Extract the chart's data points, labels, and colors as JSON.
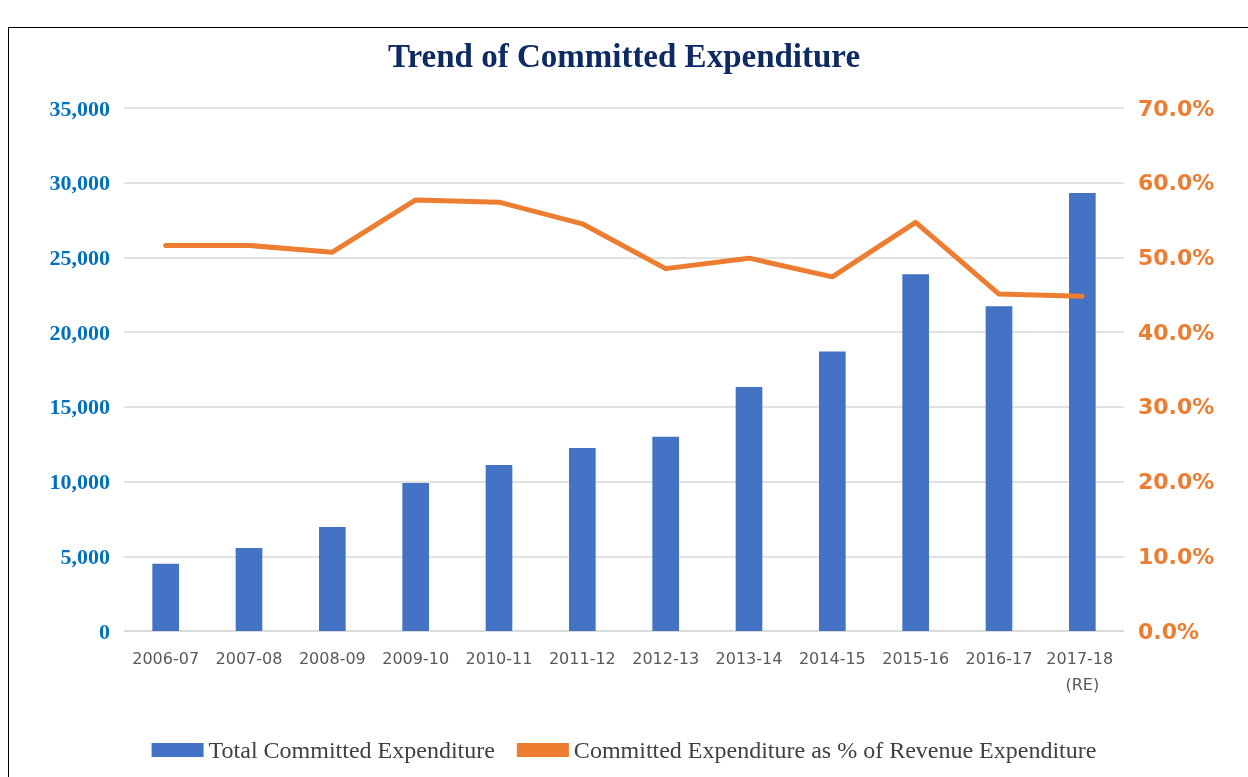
{
  "chart_data": {
    "type": "bar",
    "title": "Trend of Committed Expenditure",
    "categories": [
      "2006-07",
      "2007-08",
      "2008-09",
      "2009-10",
      "2010-11",
      "2011-12",
      "2012-13",
      "2013-14",
      "2014-15",
      "2015-16",
      "2016-17",
      "2017-18 (RE)"
    ],
    "series": [
      {
        "name": "Total Committed Expenditure",
        "color": "#4472c4",
        "values": [
          4500,
          5560,
          6960,
          9910,
          11110,
          12250,
          13000,
          16330,
          18700,
          23880,
          21730,
          29320
        ]
      },
      {
        "name": "Committed Expenditure as % of Revenue Expenditure",
        "type": "line",
        "axis": "y2",
        "color": "#ed7d31",
        "values": [
          51.6,
          51.6,
          50.7,
          57.7,
          57.4,
          54.5,
          48.5,
          49.9,
          47.4,
          54.7,
          45.1,
          44.8
        ]
      }
    ],
    "ylim": [
      0,
      35000
    ],
    "yticks": [
      {
        "value": 0,
        "label": "0"
      },
      {
        "value": 5000,
        "label": "5,000"
      },
      {
        "value": 10000,
        "label": "10,000"
      },
      {
        "value": 15000,
        "label": "15,000"
      },
      {
        "value": 20000,
        "label": "20,000"
      },
      {
        "value": 25000,
        "label": "25,000"
      },
      {
        "value": 30000,
        "label": "30,000"
      },
      {
        "value": 35000,
        "label": "35,000"
      }
    ],
    "y2lim": [
      0,
      70
    ],
    "y2ticks": [
      {
        "value": 0,
        "label": "0.0%"
      },
      {
        "value": 10,
        "label": "10.0%"
      },
      {
        "value": 20,
        "label": "20.0%"
      },
      {
        "value": 30,
        "label": "30.0%"
      },
      {
        "value": 40,
        "label": "40.0%"
      },
      {
        "value": 50,
        "label": "50.0%"
      },
      {
        "value": 60,
        "label": "60.0%"
      },
      {
        "value": 70,
        "label": "70.0%"
      }
    ],
    "grid": "y",
    "legend": "bottom",
    "marker": "none",
    "line_style": "solid"
  }
}
